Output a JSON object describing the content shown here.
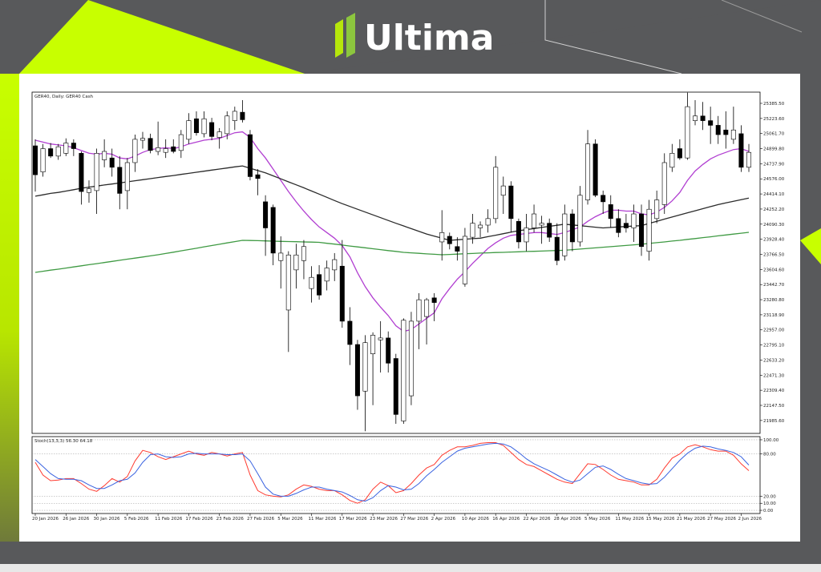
{
  "logo": "Ultima",
  "chart_data": [
    {
      "type": "candlestick",
      "title": "GER40, Daily: GER40 Cash",
      "categories": [
        "20 Jan 2026",
        null,
        null,
        null,
        "26 Jan 2026",
        null,
        null,
        null,
        "30 Jan 2026",
        null,
        null,
        null,
        "5 Feb 2026",
        null,
        null,
        null,
        "11 Feb 2026",
        null,
        null,
        null,
        "17 Feb 2026",
        null,
        null,
        null,
        "23 Feb 2026",
        null,
        null,
        null,
        "27 Feb 2026",
        null,
        null,
        null,
        "5 Mar 2026",
        null,
        null,
        null,
        "11 Mar 2026",
        null,
        null,
        null,
        "17 Mar 2026",
        null,
        null,
        null,
        "23 Mar 2026",
        null,
        null,
        null,
        "27 Mar 2026",
        null,
        null,
        null,
        "2 Apr 2026",
        null,
        null,
        null,
        "10 Apr 2026",
        null,
        null,
        null,
        "16 Apr 2026",
        null,
        null,
        null,
        "22 Apr 2026",
        null,
        null,
        null,
        "28 Apr 2026",
        null,
        null,
        null,
        "5 May 2026",
        null,
        null,
        null,
        "11 May 2026",
        null,
        null,
        null,
        "15 May 2026",
        null,
        null,
        null,
        "21 May 2026",
        null,
        null,
        null,
        "27 May 2026",
        null,
        null,
        null,
        "2 Jun 2026",
        null
      ],
      "open": [
        24930,
        24650,
        24900,
        24820,
        24850,
        24960,
        24850,
        24430,
        24450,
        24780,
        24800,
        24700,
        24450,
        24750,
        24990,
        25010,
        24870,
        24860,
        24920,
        24880,
        25000,
        25220,
        25060,
        25180,
        25020,
        25060,
        25200,
        25290,
        25050,
        24620,
        24330,
        24270,
        23700,
        23170,
        23600,
        23700,
        23400,
        23550,
        23480,
        23600,
        23640,
        23050,
        22800,
        22300,
        22700,
        22850,
        22870,
        22650,
        21980,
        22250,
        23050,
        23100,
        23300,
        23900,
        23960,
        23850,
        23450,
        23950,
        24050,
        24080,
        24150,
        24400,
        24500,
        24120,
        23900,
        24050,
        24080,
        24100,
        23950,
        23750,
        24200,
        23900,
        24350,
        24950,
        24400,
        24300,
        24150,
        24100,
        24050,
        24200,
        23800,
        24150,
        24300,
        24700,
        24900,
        24800,
        25200,
        25250,
        25200,
        25150,
        25100,
        25000,
        25060,
        24700
      ],
      "high": [
        25000,
        24950,
        24960,
        24950,
        25010,
        25000,
        24870,
        24560,
        24900,
        25000,
        24900,
        24820,
        24800,
        25050,
        25080,
        25060,
        25190,
        25000,
        25000,
        25100,
        25280,
        25300,
        25300,
        25230,
        25120,
        25300,
        25350,
        25420,
        25100,
        24680,
        24400,
        24300,
        23960,
        23800,
        23880,
        23920,
        23640,
        23650,
        23700,
        23780,
        23920,
        23200,
        22850,
        22900,
        22930,
        23050,
        22940,
        22700,
        23080,
        23150,
        23350,
        23300,
        23350,
        24240,
        24000,
        23950,
        24050,
        24200,
        24120,
        24250,
        24820,
        24600,
        24550,
        24150,
        24200,
        24300,
        24180,
        24150,
        24100,
        24300,
        24250,
        24500,
        25100,
        25000,
        24450,
        24400,
        24250,
        24200,
        24300,
        24300,
        24350,
        24450,
        24850,
        24950,
        25000,
        25500,
        25420,
        25400,
        25350,
        25250,
        25300,
        25350,
        25150,
        24950
      ],
      "low": [
        24440,
        24600,
        24800,
        24780,
        24820,
        24820,
        24300,
        24320,
        24200,
        24700,
        24600,
        24250,
        24250,
        24650,
        24900,
        24850,
        24830,
        24800,
        24850,
        24800,
        24950,
        25040,
        25020,
        24990,
        24900,
        25000,
        25100,
        25180,
        24560,
        24400,
        23750,
        23650,
        23400,
        22720,
        23400,
        23500,
        23250,
        23280,
        23380,
        23480,
        22980,
        22580,
        22100,
        21870,
        22150,
        22500,
        22500,
        21950,
        21950,
        22150,
        22750,
        22800,
        23050,
        23700,
        23820,
        23700,
        23420,
        23880,
        23950,
        24000,
        24100,
        24200,
        24000,
        23830,
        23800,
        24000,
        23880,
        23900,
        23650,
        23700,
        23800,
        23850,
        24300,
        24380,
        24200,
        24050,
        23950,
        24000,
        23900,
        23750,
        23700,
        24100,
        24200,
        24650,
        24780,
        24780,
        25150,
        25100,
        24950,
        24950,
        24900,
        24950,
        24650,
        24650
      ],
      "close": [
        24620,
        24900,
        24820,
        24920,
        24960,
        24900,
        24440,
        24470,
        24850,
        24870,
        24700,
        24420,
        24750,
        25000,
        25010,
        24880,
        24910,
        24900,
        24870,
        25050,
        25200,
        25070,
        25220,
        25030,
        25080,
        25250,
        25300,
        25210,
        24600,
        24580,
        24050,
        23780,
        23780,
        23760,
        23760,
        23850,
        23520,
        23330,
        23620,
        23710,
        23050,
        22800,
        22250,
        22820,
        22900,
        22870,
        22600,
        22050,
        23060,
        23050,
        23280,
        23280,
        23250,
        24000,
        23880,
        23800,
        23960,
        24100,
        24080,
        24150,
        24700,
        24500,
        24150,
        23900,
        24050,
        24200,
        24100,
        23950,
        23700,
        24200,
        23900,
        24400,
        24950,
        24400,
        24330,
        24150,
        24000,
        24050,
        24200,
        23850,
        24250,
        24350,
        24750,
        24850,
        24800,
        25350,
        25250,
        25200,
        25150,
        25050,
        25050,
        25100,
        24700,
        24860
      ],
      "up_color": "#ffffff",
      "down_color": "#000000",
      "overlays": [
        {
          "color": "#b13fd1",
          "values": [
            24990,
            24970,
            24950,
            24940,
            24930,
            24910,
            24880,
            24850,
            24840,
            24850,
            24840,
            24800,
            24790,
            24820,
            24860,
            24890,
            24900,
            24910,
            24900,
            24920,
            24950,
            24970,
            24990,
            25000,
            25010,
            25040,
            25070,
            25080,
            25020,
            24900,
            24800,
            24680,
            24560,
            24440,
            24330,
            24230,
            24140,
            24060,
            24000,
            23940,
            23860,
            23740,
            23570,
            23420,
            23300,
            23200,
            23110,
            23000,
            22940,
            22960,
            23020,
            23080,
            23140,
            23290,
            23400,
            23500,
            23580,
            23670,
            23750,
            23830,
            23890,
            23940,
            23970,
            23980,
            23990,
            24000,
            24000,
            23990,
            23980,
            24000,
            24030,
            24060,
            24120,
            24170,
            24210,
            24240,
            24240,
            24230,
            24230,
            24200,
            24190,
            24220,
            24270,
            24340,
            24430,
            24560,
            24660,
            24730,
            24790,
            24830,
            24860,
            24890,
            24900,
            24870
          ]
        },
        {
          "color": "#2b2b2b",
          "values": [
            24390,
            24405,
            24420,
            24430,
            24445,
            24460,
            24475,
            24487,
            24498,
            24510,
            24521,
            24532,
            24544,
            24556,
            24567,
            24578,
            24590,
            24601,
            24612,
            24624,
            24635,
            24647,
            24658,
            24670,
            24681,
            24692,
            24704,
            24715,
            24690,
            24665,
            24640,
            24608,
            24576,
            24544,
            24512,
            24480,
            24446,
            24412,
            24378,
            24344,
            24310,
            24280,
            24250,
            24220,
            24190,
            24160,
            24130,
            24100,
            24071,
            24042,
            24014,
            23985,
            23962,
            23940,
            23917,
            23923,
            23929,
            23935,
            23940,
            23956,
            23972,
            23988,
            24004,
            24020,
            24032,
            24043,
            24055,
            24067,
            24078,
            24090,
            24082,
            24074,
            24066,
            24058,
            24050,
            24055,
            24060,
            24065,
            24070,
            24075,
            24098,
            24121,
            24144,
            24167,
            24190,
            24212,
            24234,
            24256,
            24278,
            24300,
            24318,
            24335,
            24352,
            24370
          ]
        },
        {
          "color": "#3f9a43",
          "values": [
            23573,
            23585,
            23597,
            23608,
            23620,
            23632,
            23644,
            23656,
            23667,
            23679,
            23691,
            23703,
            23715,
            23726,
            23738,
            23750,
            23762,
            23776,
            23790,
            23804,
            23818,
            23832,
            23847,
            23861,
            23875,
            23889,
            23903,
            23917,
            23915,
            23913,
            23911,
            23908,
            23906,
            23904,
            23902,
            23900,
            23898,
            23895,
            23885,
            23876,
            23866,
            23856,
            23846,
            23837,
            23827,
            23817,
            23807,
            23798,
            23788,
            23783,
            23778,
            23772,
            23767,
            23762,
            23766,
            23769,
            23773,
            23776,
            23780,
            23783,
            23786,
            23788,
            23791,
            23794,
            23797,
            23799,
            23802,
            23805,
            23808,
            23810,
            23817,
            23823,
            23830,
            23836,
            23843,
            23849,
            23856,
            23862,
            23869,
            23875,
            23883,
            23892,
            23900,
            23909,
            23917,
            23927,
            23936,
            23946,
            23955,
            23965,
            23974,
            23984,
            23993,
            24003
          ]
        }
      ],
      "ylim": [
        21846.9,
        25505.7
      ],
      "yticks": [
        {
          "value": 25385.5,
          "label": "25385.50"
        },
        {
          "value": 25223.6,
          "label": "25223.60"
        },
        {
          "value": 25061.7,
          "label": "25061.70"
        },
        {
          "value": 24899.8,
          "label": "24899.80"
        },
        {
          "value": 24737.9,
          "label": "24737.90"
        },
        {
          "value": 24576,
          "label": "24576.00"
        },
        {
          "value": 24414.1,
          "label": "24414.10"
        },
        {
          "value": 24252.2,
          "label": "24252.20"
        },
        {
          "value": 24090.3,
          "label": "24090.30"
        },
        {
          "value": 23928.4,
          "label": "23928.40"
        },
        {
          "value": 23766.5,
          "label": "23766.50"
        },
        {
          "value": 23604.6,
          "label": "23604.60"
        },
        {
          "value": 23442.7,
          "label": "23442.70"
        },
        {
          "value": 23280.8,
          "label": "23280.80"
        },
        {
          "value": 23118.9,
          "label": "23118.90"
        },
        {
          "value": 22957,
          "label": "22957.00"
        },
        {
          "value": 22795.1,
          "label": "22795.10"
        },
        {
          "value": 22633.2,
          "label": "22633.20"
        },
        {
          "value": 22471.3,
          "label": "22471.30"
        },
        {
          "value": 22309.4,
          "label": "22309.40"
        },
        {
          "value": 22147.5,
          "label": "22147.50"
        },
        {
          "value": 21985.6,
          "label": "21985.60"
        }
      ]
    },
    {
      "type": "line",
      "title": "Stoch(13,3,3) 56.30 64.18",
      "series": [
        {
          "color": "#ff3b30",
          "values": [
            68,
            50,
            42,
            43,
            45,
            45,
            38,
            30,
            27,
            35,
            45,
            40,
            48,
            70,
            85,
            82,
            76,
            72,
            76,
            80,
            84,
            80,
            78,
            82,
            80,
            77,
            80,
            82,
            50,
            28,
            22,
            20,
            19,
            22,
            30,
            36,
            34,
            30,
            28,
            28,
            22,
            14,
            10,
            15,
            30,
            40,
            35,
            25,
            28,
            38,
            50,
            60,
            65,
            78,
            85,
            90,
            90,
            92,
            95,
            96,
            96,
            92,
            82,
            72,
            65,
            62,
            56,
            50,
            44,
            40,
            38,
            52,
            66,
            65,
            58,
            50,
            44,
            42,
            40,
            36,
            36,
            44,
            60,
            74,
            80,
            90,
            93,
            90,
            86,
            84,
            84,
            78,
            66,
            56.3
          ]
        },
        {
          "color": "#3a63e0",
          "values": [
            72,
            62,
            52,
            45,
            44,
            44,
            42,
            36,
            31,
            31,
            36,
            42,
            44,
            53,
            68,
            79,
            80,
            76,
            75,
            76,
            80,
            81,
            80,
            80,
            80,
            79,
            79,
            80,
            70,
            52,
            33,
            23,
            20,
            20,
            24,
            29,
            33,
            33,
            30,
            28,
            26,
            21,
            15,
            13,
            18,
            28,
            35,
            33,
            29,
            30,
            38,
            49,
            58,
            68,
            76,
            84,
            88,
            90,
            92,
            94,
            95,
            94,
            90,
            82,
            73,
            66,
            61,
            56,
            50,
            44,
            40,
            43,
            52,
            61,
            63,
            58,
            51,
            45,
            42,
            39,
            37,
            38,
            47,
            59,
            71,
            81,
            88,
            91,
            90,
            87,
            85,
            82,
            76,
            64.18
          ]
        }
      ],
      "ylim": [
        -4.5,
        104.5
      ],
      "yticks": [
        {
          "value": 100,
          "label": "100.00"
        },
        {
          "value": 80,
          "label": "80.00"
        },
        {
          "value": 20,
          "label": "20.00"
        },
        {
          "value": 10,
          "label": "10.00"
        },
        {
          "value": 0,
          "label": "0.00"
        }
      ],
      "grid": true
    }
  ]
}
